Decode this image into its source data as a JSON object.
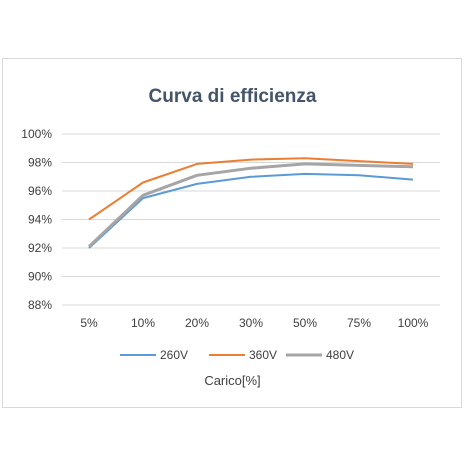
{
  "chart_data": {
    "type": "line",
    "title": "Curva di efficienza",
    "xlabel": "Carico[%]",
    "ylabel": "",
    "categories": [
      "5%",
      "10%",
      "20%",
      "30%",
      "50%",
      "75%",
      "100%"
    ],
    "ylim": [
      88,
      100
    ],
    "yticks": [
      88,
      90,
      92,
      94,
      96,
      98,
      100
    ],
    "ytick_labels": [
      "88%",
      "90%",
      "92%",
      "94%",
      "96%",
      "98%",
      "100%"
    ],
    "grid": true,
    "legend": "bottom",
    "series": [
      {
        "name": "260V",
        "color": "#5b9bd5",
        "values": [
          92.0,
          95.5,
          96.5,
          97.0,
          97.2,
          97.1,
          96.8
        ]
      },
      {
        "name": "360V",
        "color": "#ed7d31",
        "values": [
          94.0,
          96.6,
          97.9,
          98.2,
          98.3,
          98.1,
          97.9
        ]
      },
      {
        "name": "480V",
        "color": "#a5a5a5",
        "values": [
          92.1,
          95.7,
          97.1,
          97.6,
          97.9,
          97.8,
          97.7
        ]
      }
    ]
  }
}
